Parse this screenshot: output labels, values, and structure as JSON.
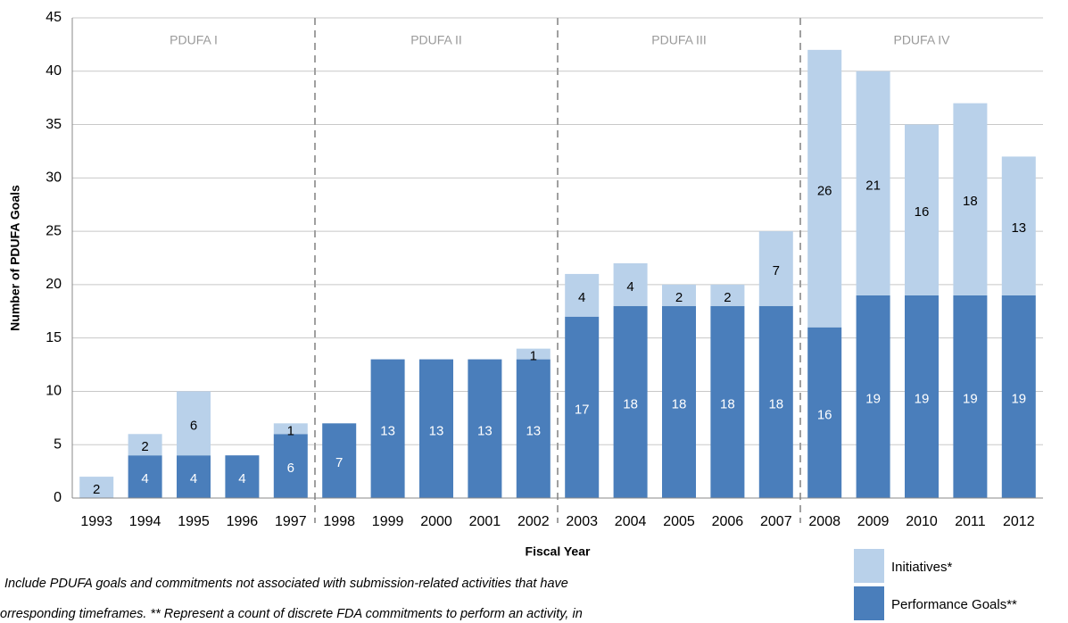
{
  "chart_data": {
    "type": "stacked_bar",
    "y_label": "Number of PDUFA Goals",
    "x_label": "Fiscal Year",
    "categories": [
      "1993",
      "1994",
      "1995",
      "1996",
      "1997",
      "1998",
      "1999",
      "2000",
      "2001",
      "2002",
      "2003",
      "2004",
      "2005",
      "2006",
      "2007",
      "2008",
      "2009",
      "2010",
      "2011",
      "2012"
    ],
    "series": [
      {
        "name": "Performance Goals**",
        "color": "#4a7ebb",
        "label_color": "#ffffff",
        "values": [
          null,
          4,
          4,
          4,
          6,
          7,
          13,
          13,
          13,
          13,
          17,
          18,
          18,
          18,
          18,
          16,
          19,
          19,
          19,
          19
        ]
      },
      {
        "name": "Initiatives*",
        "color": "#b9d1ea",
        "label_color": "#000000",
        "values": [
          2,
          2,
          6,
          null,
          1,
          null,
          null,
          null,
          null,
          1,
          4,
          4,
          2,
          2,
          7,
          26,
          21,
          16,
          18,
          13
        ]
      }
    ],
    "period_labels": [
      "PDUFA I",
      "PDUFA II",
      "PDUFA III",
      "PDUFA IV"
    ],
    "ylim": [
      0,
      45
    ],
    "yticks": [
      0,
      5,
      10,
      15,
      20,
      25,
      30,
      35,
      40,
      45
    ],
    "grid": true,
    "footnote": [
      "Include PDUFA goals and commitments not associated with submission-related activities  that have",
      "orresponding timeframes. ** Represent a count of discrete FDA commitments to perform an activity, in"
    ]
  }
}
